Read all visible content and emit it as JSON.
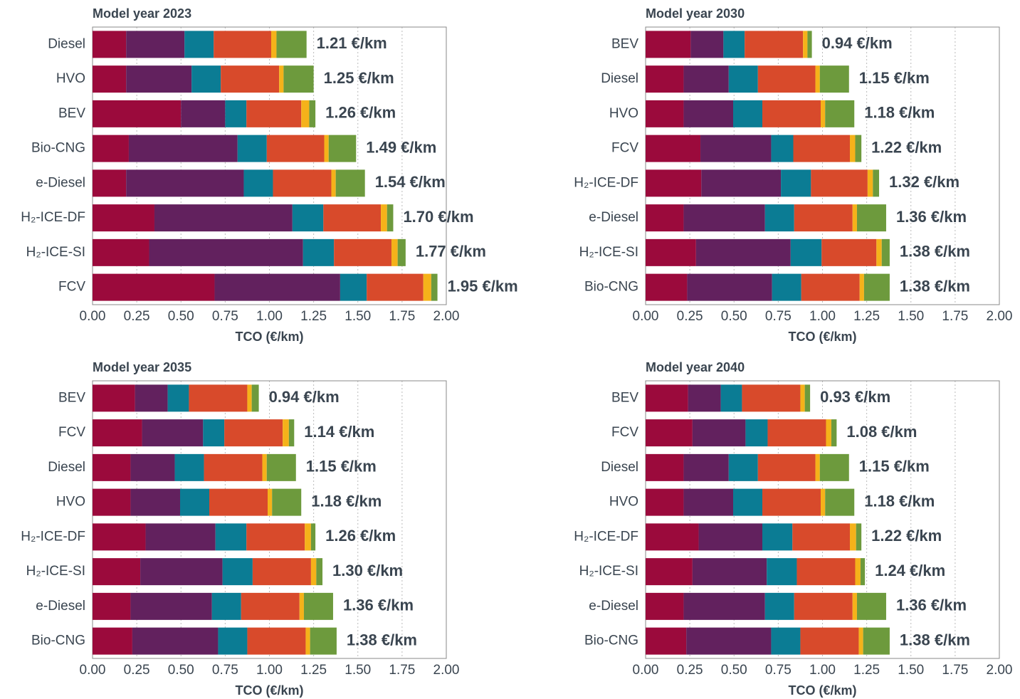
{
  "chart_data": [
    {
      "type": "bar",
      "title": "Model year 2023",
      "xlabel": "TCO (€/km)",
      "categories": [
        "Diesel",
        "HVO",
        "BEV",
        "Bio-CNG",
        "e-Diesel",
        "H₂-ICE-DF",
        "H₂-ICE-SI",
        "FCV"
      ],
      "series": [
        {
          "color": "#9b0a3c",
          "values": [
            0.19,
            0.19,
            0.5,
            0.205,
            0.19,
            0.35,
            0.32,
            0.69
          ]
        },
        {
          "color": "#62215e",
          "values": [
            0.33,
            0.37,
            0.25,
            0.615,
            0.665,
            0.78,
            0.87,
            0.71
          ]
        },
        {
          "color": "#0b7c94",
          "values": [
            0.165,
            0.165,
            0.12,
            0.165,
            0.165,
            0.175,
            0.175,
            0.15
          ]
        },
        {
          "color": "#d84a2b",
          "values": [
            0.325,
            0.33,
            0.31,
            0.325,
            0.33,
            0.325,
            0.325,
            0.32
          ]
        },
        {
          "color": "#f5b21a",
          "values": [
            0.03,
            0.025,
            0.045,
            0.025,
            0.025,
            0.035,
            0.035,
            0.045
          ]
        },
        {
          "color": "#6d9a3d",
          "values": [
            0.17,
            0.17,
            0.035,
            0.155,
            0.165,
            0.035,
            0.045,
            0.035
          ]
        }
      ],
      "totals": [
        1.21,
        1.25,
        1.26,
        1.49,
        1.54,
        1.7,
        1.77,
        1.95
      ],
      "total_labels": [
        "1.21 €/km",
        "1.25 €/km",
        "1.26 €/km",
        "1.49 €/km",
        "1.54 €/km",
        "1.70 €/km",
        "1.77 €/km",
        "1.95 €/km"
      ],
      "xlim": [
        0,
        2
      ],
      "xticks": [
        {
          "value": 0,
          "label": "0.00"
        },
        {
          "value": 0.25,
          "label": "0.25"
        },
        {
          "value": 0.5,
          "label": "0.50"
        },
        {
          "value": 0.75,
          "label": "0.75"
        },
        {
          "value": 1,
          "label": "1.00"
        },
        {
          "value": 1.25,
          "label": "1.25"
        },
        {
          "value": 1.5,
          "label": "1.50"
        },
        {
          "value": 1.75,
          "label": "1.75"
        },
        {
          "value": 2,
          "label": "2.00"
        }
      ],
      "grid": true
    },
    {
      "type": "bar",
      "title": "Model year 2030",
      "xlabel": "TCO (€/km)",
      "categories": [
        "BEV",
        "Diesel",
        "HVO",
        "FCV",
        "H₂-ICE-DF",
        "e-Diesel",
        "H₂-ICE-SI",
        "Bio-CNG"
      ],
      "series": [
        {
          "color": "#9b0a3c",
          "values": [
            0.255,
            0.215,
            0.215,
            0.31,
            0.315,
            0.215,
            0.285,
            0.235
          ]
        },
        {
          "color": "#62215e",
          "values": [
            0.185,
            0.255,
            0.28,
            0.4,
            0.45,
            0.46,
            0.535,
            0.48
          ]
        },
        {
          "color": "#0b7c94",
          "values": [
            0.12,
            0.165,
            0.165,
            0.125,
            0.17,
            0.165,
            0.175,
            0.165
          ]
        },
        {
          "color": "#d84a2b",
          "values": [
            0.33,
            0.325,
            0.33,
            0.32,
            0.32,
            0.33,
            0.31,
            0.33
          ]
        },
        {
          "color": "#f5b21a",
          "values": [
            0.025,
            0.025,
            0.025,
            0.03,
            0.03,
            0.025,
            0.03,
            0.025
          ]
        },
        {
          "color": "#6d9a3d",
          "values": [
            0.025,
            0.165,
            0.165,
            0.035,
            0.035,
            0.165,
            0.045,
            0.145
          ]
        }
      ],
      "totals": [
        0.94,
        1.15,
        1.18,
        1.22,
        1.32,
        1.36,
        1.38,
        1.38
      ],
      "total_labels": [
        "0.94 €/km",
        "1.15 €/km",
        "1.18 €/km",
        "1.22 €/km",
        "1.32 €/km",
        "1.36 €/km",
        "1.38 €/km",
        "1.38 €/km"
      ],
      "xlim": [
        0,
        2
      ],
      "xticks": [
        {
          "value": 0,
          "label": "0.00"
        },
        {
          "value": 0.25,
          "label": "0.25"
        },
        {
          "value": 0.5,
          "label": "0.50"
        },
        {
          "value": 0.75,
          "label": "0.75"
        },
        {
          "value": 1,
          "label": "1.00"
        },
        {
          "value": 1.25,
          "label": "1.25"
        },
        {
          "value": 1.5,
          "label": "1.50"
        },
        {
          "value": 1.75,
          "label": "1.75"
        },
        {
          "value": 2,
          "label": "2.00"
        }
      ],
      "grid": true
    },
    {
      "type": "bar",
      "title": "Model year 2035",
      "xlabel": "TCO (€/km)",
      "categories": [
        "BEV",
        "FCV",
        "Diesel",
        "HVO",
        "H₂-ICE-DF",
        "H₂-ICE-SI",
        "e-Diesel",
        "Bio-CNG"
      ],
      "series": [
        {
          "color": "#9b0a3c",
          "values": [
            0.24,
            0.28,
            0.215,
            0.215,
            0.3,
            0.27,
            0.215,
            0.225
          ]
        },
        {
          "color": "#62215e",
          "values": [
            0.185,
            0.345,
            0.25,
            0.28,
            0.395,
            0.465,
            0.46,
            0.485
          ]
        },
        {
          "color": "#0b7c94",
          "values": [
            0.12,
            0.12,
            0.165,
            0.165,
            0.175,
            0.17,
            0.165,
            0.165
          ]
        },
        {
          "color": "#d84a2b",
          "values": [
            0.33,
            0.33,
            0.33,
            0.33,
            0.33,
            0.33,
            0.33,
            0.33
          ]
        },
        {
          "color": "#f5b21a",
          "values": [
            0.025,
            0.035,
            0.025,
            0.025,
            0.035,
            0.03,
            0.025,
            0.025
          ]
        },
        {
          "color": "#6d9a3d",
          "values": [
            0.04,
            0.03,
            0.165,
            0.165,
            0.025,
            0.035,
            0.165,
            0.15
          ]
        }
      ],
      "totals": [
        0.94,
        1.14,
        1.15,
        1.18,
        1.26,
        1.3,
        1.36,
        1.38
      ],
      "total_labels": [
        "0.94 €/km",
        "1.14 €/km",
        "1.15 €/km",
        "1.18 €/km",
        "1.26 €/km",
        "1.30 €/km",
        "1.36 €/km",
        "1.38 €/km"
      ],
      "xlim": [
        0,
        2
      ],
      "xticks": [
        {
          "value": 0,
          "label": "0.00"
        },
        {
          "value": 0.25,
          "label": "0.25"
        },
        {
          "value": 0.5,
          "label": "0.50"
        },
        {
          "value": 0.75,
          "label": "0.75"
        },
        {
          "value": 1,
          "label": "1.00"
        },
        {
          "value": 1.25,
          "label": "1.25"
        },
        {
          "value": 1.5,
          "label": "1.50"
        },
        {
          "value": 1.75,
          "label": "1.75"
        },
        {
          "value": 2,
          "label": "2.00"
        }
      ],
      "grid": true
    },
    {
      "type": "bar",
      "title": "Model year 2040",
      "xlabel": "TCO (€/km)",
      "categories": [
        "BEV",
        "FCV",
        "Diesel",
        "HVO",
        "H₂-ICE-DF",
        "H₂-ICE-SI",
        "e-Diesel",
        "Bio-CNG"
      ],
      "series": [
        {
          "color": "#9b0a3c",
          "values": [
            0.24,
            0.265,
            0.215,
            0.215,
            0.3,
            0.265,
            0.215,
            0.23
          ]
        },
        {
          "color": "#62215e",
          "values": [
            0.185,
            0.3,
            0.255,
            0.28,
            0.36,
            0.42,
            0.46,
            0.48
          ]
        },
        {
          "color": "#0b7c94",
          "values": [
            0.12,
            0.125,
            0.165,
            0.165,
            0.17,
            0.17,
            0.165,
            0.165
          ]
        },
        {
          "color": "#d84a2b",
          "values": [
            0.33,
            0.33,
            0.325,
            0.33,
            0.325,
            0.33,
            0.33,
            0.33
          ]
        },
        {
          "color": "#f5b21a",
          "values": [
            0.025,
            0.03,
            0.025,
            0.025,
            0.035,
            0.03,
            0.025,
            0.025
          ]
        },
        {
          "color": "#6d9a3d",
          "values": [
            0.03,
            0.03,
            0.165,
            0.165,
            0.03,
            0.025,
            0.165,
            0.15
          ]
        }
      ],
      "totals": [
        0.93,
        1.08,
        1.15,
        1.18,
        1.22,
        1.24,
        1.36,
        1.38
      ],
      "total_labels": [
        "0.93 €/km",
        "1.08 €/km",
        "1.15 €/km",
        "1.18 €/km",
        "1.22 €/km",
        "1.24 €/km",
        "1.36 €/km",
        "1.38 €/km"
      ],
      "xlim": [
        0,
        2
      ],
      "xticks": [
        {
          "value": 0,
          "label": "0.00"
        },
        {
          "value": 0.25,
          "label": "0.25"
        },
        {
          "value": 0.5,
          "label": "0.50"
        },
        {
          "value": 0.75,
          "label": "0.75"
        },
        {
          "value": 1,
          "label": "1.00"
        },
        {
          "value": 1.25,
          "label": "1.25"
        },
        {
          "value": 1.5,
          "label": "1.50"
        },
        {
          "value": 1.75,
          "label": "1.75"
        },
        {
          "value": 2,
          "label": "2.00"
        }
      ],
      "grid": true
    }
  ]
}
